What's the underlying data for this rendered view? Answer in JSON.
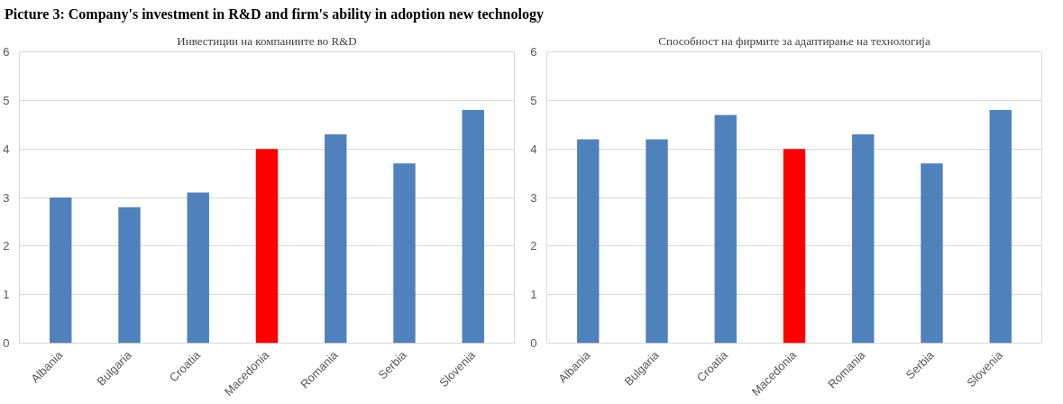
{
  "chart_data": [
    {
      "type": "bar",
      "title": "Инвестиции на компаниите во R&D",
      "annotations": [
        "Picture 3: Company's investment in R&D and firm's ability in adoption new technology"
      ],
      "categories": [
        "Albania",
        "Bulgaria",
        "Croatia",
        "Macedonia",
        "Romania",
        "Serbia",
        "Slovenia"
      ],
      "values": [
        3.0,
        2.8,
        3.1,
        4.0,
        4.3,
        3.7,
        4.8
      ],
      "colors": [
        "#4f81bd",
        "#4f81bd",
        "#4f81bd",
        "#ff0000",
        "#4f81bd",
        "#4f81bd",
        "#4f81bd"
      ],
      "ylim": [
        0,
        6
      ],
      "yticks": [
        0,
        1,
        2,
        3,
        4,
        5,
        6
      ],
      "grid": "y"
    },
    {
      "type": "bar",
      "title": "Способност на фирмите за адаптирање на технологија",
      "categories": [
        "Albania",
        "Bulgaria",
        "Croatia",
        "Macedonia",
        "Romania",
        "Serbia",
        "Slovenia"
      ],
      "values": [
        4.2,
        4.2,
        4.7,
        4.0,
        4.3,
        3.7,
        4.8
      ],
      "colors": [
        "#4f81bd",
        "#4f81bd",
        "#4f81bd",
        "#ff0000",
        "#4f81bd",
        "#4f81bd",
        "#4f81bd"
      ],
      "ylim": [
        0,
        6
      ],
      "yticks": [
        0,
        1,
        2,
        3,
        4,
        5,
        6
      ],
      "grid": "y"
    }
  ]
}
